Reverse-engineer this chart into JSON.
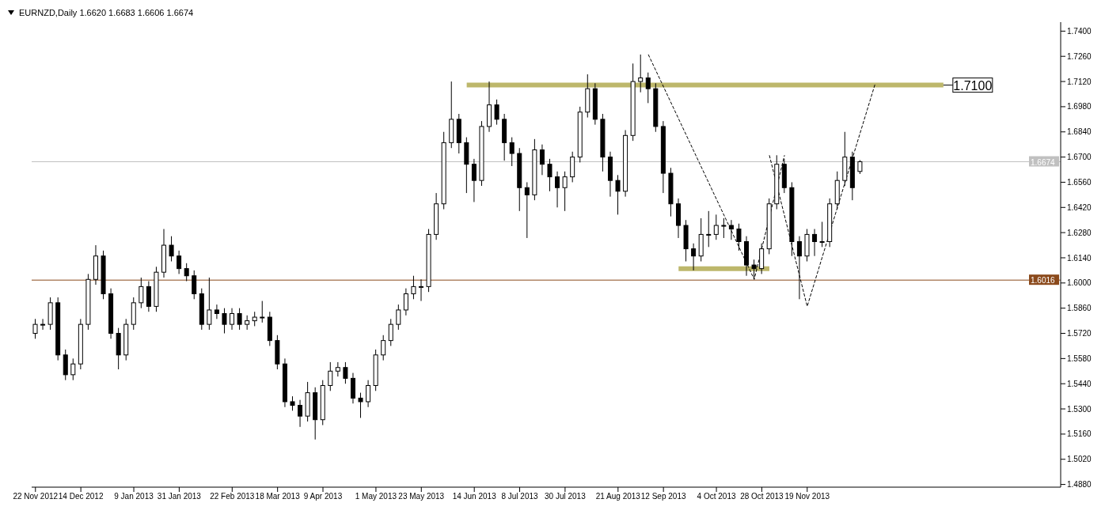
{
  "chart_data": {
    "type": "candlestick",
    "title": "EURNZD,Daily 1.6620 1.6683 1.6606 1.6674",
    "color": "#000000",
    "categories": [
      "22 Nov 2012",
      null,
      null,
      null,
      null,
      null,
      "14 Dec 2012",
      null,
      null,
      null,
      null,
      null,
      null,
      "9 Jan 2013",
      null,
      null,
      null,
      null,
      null,
      "31 Jan 2013",
      null,
      null,
      null,
      null,
      null,
      null,
      "22 Feb 2013",
      null,
      null,
      null,
      null,
      null,
      "18 Mar 2013",
      null,
      null,
      null,
      null,
      null,
      "9 Apr 2013",
      null,
      null,
      null,
      null,
      null,
      null,
      "1 May 2013",
      null,
      null,
      null,
      null,
      null,
      "23 May 2013",
      null,
      null,
      null,
      null,
      null,
      null,
      "14 Jun 2013",
      null,
      null,
      null,
      null,
      null,
      "8 Jul 2013",
      null,
      null,
      null,
      null,
      null,
      "30 Jul 2013",
      null,
      null,
      null,
      null,
      null,
      null,
      "21 Aug 2013",
      null,
      null,
      null,
      null,
      null,
      "12 Sep 2013",
      null,
      null,
      null,
      null,
      null,
      null,
      "4 Oct 2013",
      null,
      null,
      null,
      null,
      null,
      "28 Oct 2013",
      null,
      null,
      null,
      null,
      null,
      "19 Nov 2013",
      null,
      null,
      null,
      null,
      null,
      null,
      null,
      null,
      null,
      null,
      null,
      null,
      null,
      null,
      null,
      null,
      null,
      null,
      null,
      null,
      null,
      null,
      null,
      null,
      null,
      null,
      null,
      null,
      null,
      null,
      null,
      null,
      null
    ],
    "ohlc": [
      [
        1.572,
        1.58,
        1.569,
        1.577
      ],
      [
        1.577,
        1.58,
        1.574,
        1.577
      ],
      [
        1.577,
        1.592,
        1.574,
        1.589
      ],
      [
        1.589,
        1.592,
        1.557,
        1.56
      ],
      [
        1.56,
        1.563,
        1.546,
        1.549
      ],
      [
        1.549,
        1.558,
        1.546,
        1.555
      ],
      [
        1.555,
        1.58,
        1.552,
        1.577
      ],
      [
        1.577,
        1.605,
        1.574,
        1.602
      ],
      [
        1.602,
        1.621,
        1.599,
        1.615
      ],
      [
        1.615,
        1.618,
        1.591,
        1.594
      ],
      [
        1.594,
        1.597,
        1.569,
        1.572
      ],
      [
        1.572,
        1.575,
        1.552,
        1.56
      ],
      [
        1.56,
        1.58,
        1.557,
        1.577
      ],
      [
        1.577,
        1.592,
        1.574,
        1.589
      ],
      [
        1.589,
        1.603,
        1.586,
        1.598
      ],
      [
        1.598,
        1.601,
        1.584,
        1.587
      ],
      [
        1.587,
        1.609,
        1.584,
        1.606
      ],
      [
        1.606,
        1.63,
        1.603,
        1.621
      ],
      [
        1.621,
        1.626,
        1.612,
        1.615
      ],
      [
        1.615,
        1.618,
        1.605,
        1.608
      ],
      [
        1.608,
        1.611,
        1.601,
        1.604
      ],
      [
        1.604,
        1.607,
        1.591,
        1.594
      ],
      [
        1.594,
        1.597,
        1.574,
        1.577
      ],
      [
        1.577,
        1.603,
        1.574,
        1.585
      ],
      [
        1.585,
        1.588,
        1.58,
        1.583
      ],
      [
        1.583,
        1.586,
        1.572,
        1.577
      ],
      [
        1.577,
        1.586,
        1.574,
        1.583
      ],
      [
        1.583,
        1.586,
        1.574,
        1.577
      ],
      [
        1.577,
        1.582,
        1.574,
        1.579
      ],
      [
        1.579,
        1.584,
        1.576,
        1.581
      ],
      [
        1.581,
        1.59,
        1.578,
        1.581
      ],
      [
        1.581,
        1.584,
        1.565,
        1.568
      ],
      [
        1.568,
        1.571,
        1.552,
        1.555
      ],
      [
        1.555,
        1.558,
        1.531,
        1.534
      ],
      [
        1.534,
        1.537,
        1.529,
        1.532
      ],
      [
        1.532,
        1.535,
        1.52,
        1.526
      ],
      [
        1.526,
        1.545,
        1.523,
        1.539
      ],
      [
        1.539,
        1.542,
        1.513,
        1.524
      ],
      [
        1.524,
        1.546,
        1.521,
        1.543
      ],
      [
        1.543,
        1.556,
        1.54,
        1.551
      ],
      [
        1.551,
        1.556,
        1.548,
        1.553
      ],
      [
        1.553,
        1.556,
        1.544,
        1.547
      ],
      [
        1.547,
        1.55,
        1.533,
        1.536
      ],
      [
        1.536,
        1.539,
        1.525,
        1.534
      ],
      [
        1.534,
        1.546,
        1.531,
        1.543
      ],
      [
        1.543,
        1.563,
        1.54,
        1.56
      ],
      [
        1.56,
        1.571,
        1.557,
        1.568
      ],
      [
        1.568,
        1.58,
        1.565,
        1.577
      ],
      [
        1.577,
        1.588,
        1.574,
        1.585
      ],
      [
        1.585,
        1.597,
        1.582,
        1.594
      ],
      [
        1.594,
        1.604,
        1.591,
        1.598
      ],
      [
        1.598,
        1.602,
        1.59,
        1.598
      ],
      [
        1.598,
        1.63,
        1.595,
        1.627
      ],
      [
        1.627,
        1.65,
        1.624,
        1.644
      ],
      [
        1.644,
        1.684,
        1.641,
        1.678
      ],
      [
        1.678,
        1.712,
        1.675,
        1.691
      ],
      [
        1.691,
        1.694,
        1.672,
        1.678
      ],
      [
        1.678,
        1.681,
        1.65,
        1.666
      ],
      [
        1.666,
        1.669,
        1.645,
        1.657
      ],
      [
        1.657,
        1.69,
        1.654,
        1.687
      ],
      [
        1.687,
        1.712,
        1.684,
        1.699
      ],
      [
        1.699,
        1.702,
        1.688,
        1.691
      ],
      [
        1.691,
        1.694,
        1.668,
        1.678
      ],
      [
        1.678,
        1.681,
        1.665,
        1.672
      ],
      [
        1.672,
        1.675,
        1.64,
        1.653
      ],
      [
        1.653,
        1.656,
        1.625,
        1.649
      ],
      [
        1.649,
        1.68,
        1.646,
        1.674
      ],
      [
        1.674,
        1.677,
        1.66,
        1.666
      ],
      [
        1.666,
        1.669,
        1.651,
        1.659
      ],
      [
        1.659,
        1.662,
        1.642,
        1.653
      ],
      [
        1.653,
        1.662,
        1.64,
        1.659
      ],
      [
        1.659,
        1.673,
        1.656,
        1.67
      ],
      [
        1.67,
        1.698,
        1.667,
        1.695
      ],
      [
        1.695,
        1.716,
        1.692,
        1.708
      ],
      [
        1.708,
        1.711,
        1.688,
        1.691
      ],
      [
        1.691,
        1.694,
        1.662,
        1.67
      ],
      [
        1.67,
        1.673,
        1.648,
        1.657
      ],
      [
        1.657,
        1.66,
        1.638,
        1.651
      ],
      [
        1.651,
        1.685,
        1.648,
        1.682
      ],
      [
        1.682,
        1.722,
        1.679,
        1.712
      ],
      [
        1.712,
        1.727,
        1.706,
        1.714
      ],
      [
        1.714,
        1.717,
        1.7,
        1.708
      ],
      [
        1.708,
        1.711,
        1.684,
        1.687
      ],
      [
        1.687,
        1.69,
        1.65,
        1.661
      ],
      [
        1.661,
        1.664,
        1.637,
        1.644
      ],
      [
        1.644,
        1.647,
        1.625,
        1.632
      ],
      [
        1.632,
        1.635,
        1.612,
        1.619
      ],
      [
        1.619,
        1.622,
        1.607,
        1.615
      ],
      [
        1.615,
        1.636,
        1.612,
        1.627
      ],
      [
        1.627,
        1.64,
        1.62,
        1.627
      ],
      [
        1.627,
        1.638,
        1.624,
        1.632
      ],
      [
        1.632,
        1.636,
        1.625,
        1.632
      ],
      [
        1.632,
        1.635,
        1.624,
        1.63
      ],
      [
        1.63,
        1.633,
        1.618,
        1.623
      ],
      [
        1.623,
        1.626,
        1.604,
        1.61
      ],
      [
        1.61,
        1.613,
        1.602,
        1.608
      ],
      [
        1.608,
        1.622,
        1.605,
        1.619
      ],
      [
        1.619,
        1.647,
        1.616,
        1.644
      ],
      [
        1.644,
        1.671,
        1.641,
        1.666
      ],
      [
        1.666,
        1.669,
        1.65,
        1.653
      ],
      [
        1.653,
        1.656,
        1.615,
        1.623
      ],
      [
        1.623,
        1.626,
        1.591,
        1.615
      ],
      [
        1.615,
        1.63,
        1.612,
        1.627
      ],
      [
        1.627,
        1.63,
        1.615,
        1.623
      ],
      [
        1.623,
        1.634,
        1.62,
        1.623
      ],
      [
        1.623,
        1.647,
        1.62,
        1.644
      ],
      [
        1.644,
        1.662,
        1.641,
        1.657
      ],
      [
        1.657,
        1.684,
        1.654,
        1.67
      ],
      [
        1.67,
        1.673,
        1.646,
        1.653
      ],
      [
        1.662,
        1.6683,
        1.6606,
        1.6674
      ],
      null,
      null,
      null,
      null,
      null,
      null,
      null,
      null,
      null,
      null,
      null,
      null,
      null,
      null,
      null,
      null,
      null,
      null,
      null,
      null,
      null,
      null,
      null,
      null,
      null,
      null
    ],
    "series": [
      {
        "type": "line",
        "color": "#000000",
        "line_style": "dashed",
        "values": [
          null,
          null,
          null,
          null,
          null,
          null,
          null,
          null,
          null,
          null,
          null,
          null,
          null,
          null,
          null,
          null,
          null,
          null,
          null,
          null,
          null,
          null,
          null,
          null,
          null,
          null,
          null,
          null,
          null,
          null,
          null,
          null,
          null,
          null,
          null,
          null,
          null,
          null,
          null,
          null,
          null,
          null,
          null,
          null,
          null,
          null,
          null,
          null,
          null,
          null,
          null,
          null,
          null,
          null,
          null,
          null,
          null,
          null,
          null,
          null,
          null,
          null,
          null,
          null,
          null,
          null,
          null,
          null,
          null,
          null,
          null,
          null,
          null,
          null,
          null,
          null,
          null,
          null,
          null,
          null,
          null,
          1.727,
          null,
          null,
          null,
          null,
          null,
          null,
          null,
          null,
          null,
          null,
          null,
          null,
          null,
          1.602,
          null,
          null,
          null,
          1.671,
          null,
          null,
          null,
          null,
          null,
          null,
          null,
          null,
          null,
          null,
          null,
          null,
          null,
          null,
          null,
          null,
          null,
          null,
          null,
          null,
          null,
          null,
          null,
          null,
          null,
          null,
          null,
          null,
          null,
          null,
          null,
          null,
          null,
          null,
          null,
          null
        ]
      },
      {
        "type": "line",
        "color": "#000000",
        "line_style": "dashed",
        "values": [
          null,
          null,
          null,
          null,
          null,
          null,
          null,
          null,
          null,
          null,
          null,
          null,
          null,
          null,
          null,
          null,
          null,
          null,
          null,
          null,
          null,
          null,
          null,
          null,
          null,
          null,
          null,
          null,
          null,
          null,
          null,
          null,
          null,
          null,
          null,
          null,
          null,
          null,
          null,
          null,
          null,
          null,
          null,
          null,
          null,
          null,
          null,
          null,
          null,
          null,
          null,
          null,
          null,
          null,
          null,
          null,
          null,
          null,
          null,
          null,
          null,
          null,
          null,
          null,
          null,
          null,
          null,
          null,
          null,
          null,
          null,
          null,
          null,
          null,
          null,
          null,
          null,
          null,
          null,
          null,
          null,
          null,
          null,
          null,
          null,
          null,
          null,
          null,
          null,
          null,
          null,
          null,
          null,
          null,
          null,
          null,
          null,
          1.671,
          null,
          null,
          null,
          null,
          1.587,
          null,
          null,
          null,
          null,
          null,
          null,
          null,
          null,
          1.711,
          null,
          null,
          null,
          null,
          null,
          null,
          null,
          null,
          null,
          null,
          null,
          null,
          null,
          null,
          null,
          null,
          null,
          null,
          null,
          null,
          null,
          null,
          null,
          null
        ]
      },
      {
        "type": "line",
        "name": "1.7100",
        "color": "#bdb76b",
        "line_style": "solid",
        "values": [
          null,
          null,
          null,
          null,
          null,
          null,
          null,
          null,
          null,
          null,
          null,
          null,
          null,
          null,
          null,
          null,
          null,
          null,
          null,
          null,
          null,
          null,
          null,
          null,
          null,
          null,
          null,
          null,
          null,
          null,
          null,
          null,
          null,
          null,
          null,
          null,
          null,
          null,
          null,
          null,
          null,
          null,
          null,
          null,
          null,
          null,
          null,
          null,
          null,
          null,
          null,
          null,
          null,
          null,
          null,
          null,
          null,
          1.71,
          null,
          null,
          null,
          null,
          null,
          null,
          null,
          null,
          null,
          null,
          null,
          null,
          null,
          null,
          null,
          null,
          null,
          null,
          null,
          null,
          null,
          null,
          null,
          null,
          null,
          null,
          null,
          null,
          null,
          null,
          null,
          null,
          null,
          null,
          null,
          null,
          null,
          null,
          null,
          null,
          null,
          null,
          null,
          null,
          null,
          null,
          null,
          null,
          null,
          null,
          null,
          null,
          null,
          null,
          null,
          null,
          null,
          null,
          null,
          null,
          null,
          null,
          1.71,
          null,
          null,
          null,
          null,
          null,
          null,
          null,
          null,
          null,
          null,
          null,
          null,
          null,
          null,
          null
        ]
      },
      {
        "type": "line",
        "color": "#bdb76b",
        "line_style": "solid",
        "values": [
          null,
          null,
          null,
          null,
          null,
          null,
          null,
          null,
          null,
          null,
          null,
          null,
          null,
          null,
          null,
          null,
          null,
          null,
          null,
          null,
          null,
          null,
          null,
          null,
          null,
          null,
          null,
          null,
          null,
          null,
          null,
          null,
          null,
          null,
          null,
          null,
          null,
          null,
          null,
          null,
          null,
          null,
          null,
          null,
          null,
          null,
          null,
          null,
          null,
          null,
          null,
          null,
          null,
          null,
          null,
          null,
          null,
          null,
          null,
          null,
          null,
          null,
          null,
          null,
          null,
          null,
          null,
          null,
          null,
          null,
          null,
          null,
          null,
          null,
          null,
          null,
          null,
          null,
          null,
          null,
          null,
          null,
          null,
          null,
          null,
          1.608,
          null,
          null,
          null,
          null,
          null,
          null,
          null,
          null,
          null,
          null,
          null,
          1.608,
          null,
          null,
          null,
          null,
          null,
          null,
          null,
          null,
          null,
          null,
          null,
          null,
          null,
          null,
          null,
          null,
          null,
          null,
          null,
          null,
          null,
          null,
          null,
          null,
          null,
          null,
          null,
          null,
          null,
          null,
          null,
          null,
          null,
          null,
          null,
          null,
          null,
          null
        ]
      }
    ],
    "ref_lines": [
      {
        "axis": "y",
        "value": 1.6674,
        "label": "1.6674",
        "color": "#c0c0c0"
      },
      {
        "axis": "y",
        "value": 1.6016,
        "label": "1.6016",
        "color": "#8b4a1c"
      }
    ],
    "ylim": [
      1.4865,
      1.745
    ],
    "yticks": [
      {
        "value": 1.74,
        "label": "1.7400"
      },
      {
        "value": 1.726,
        "label": "1.7260"
      },
      {
        "value": 1.712,
        "label": "1.7120"
      },
      {
        "value": 1.698,
        "label": "1.6980"
      },
      {
        "value": 1.684,
        "label": "1.6840"
      },
      {
        "value": 1.67,
        "label": "1.6700"
      },
      {
        "value": 1.656,
        "label": "1.6560"
      },
      {
        "value": 1.642,
        "label": "1.6420"
      },
      {
        "value": 1.628,
        "label": "1.6280"
      },
      {
        "value": 1.614,
        "label": "1.6140"
      },
      {
        "value": 1.6,
        "label": "1.6000"
      },
      {
        "value": 1.586,
        "label": "1.5860"
      },
      {
        "value": 1.572,
        "label": "1.5720"
      },
      {
        "value": 1.558,
        "label": "1.5580"
      },
      {
        "value": 1.544,
        "label": "1.5440"
      },
      {
        "value": 1.53,
        "label": "1.5300"
      },
      {
        "value": 1.516,
        "label": "1.5160"
      },
      {
        "value": 1.502,
        "label": "1.5020"
      },
      {
        "value": 1.488,
        "label": "1.4880"
      }
    ]
  }
}
